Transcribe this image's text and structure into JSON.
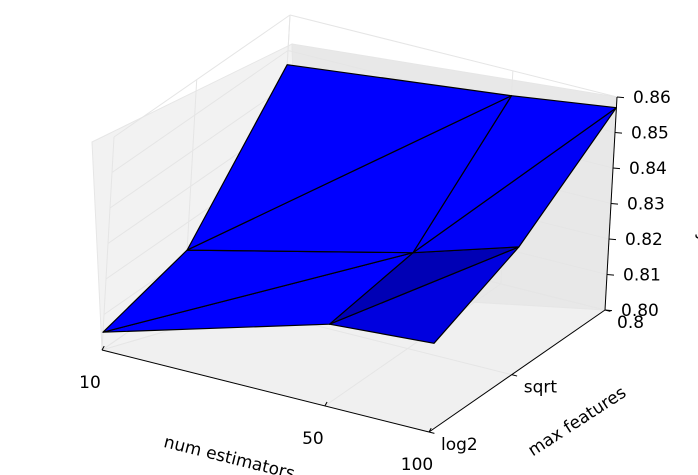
{
  "chart_data": {
    "type": "surface3d",
    "title": "",
    "xlabel": "num estimators",
    "ylabel": "max features",
    "zlabel": "accuracy",
    "x_ticks": [
      "10",
      "50",
      "100"
    ],
    "y_ticks": [
      "log2",
      "sqrt",
      "0.8"
    ],
    "z_ticks": [
      "0.80",
      "0.81",
      "0.82",
      "0.83",
      "0.84",
      "0.85",
      "0.86"
    ],
    "zlim": [
      0.8,
      0.86
    ],
    "grid": true,
    "surface_color": "#0000ff",
    "grid_points": {
      "num_estimators": [
        "10",
        "50",
        "100"
      ],
      "max_features": [
        "log2",
        "sqrt",
        "0.8"
      ],
      "accuracy": [
        [
          0.805,
          0.812,
          0.846
        ],
        [
          0.823,
          0.827,
          0.853
        ],
        [
          0.825,
          0.836,
          0.857
        ]
      ]
    }
  }
}
